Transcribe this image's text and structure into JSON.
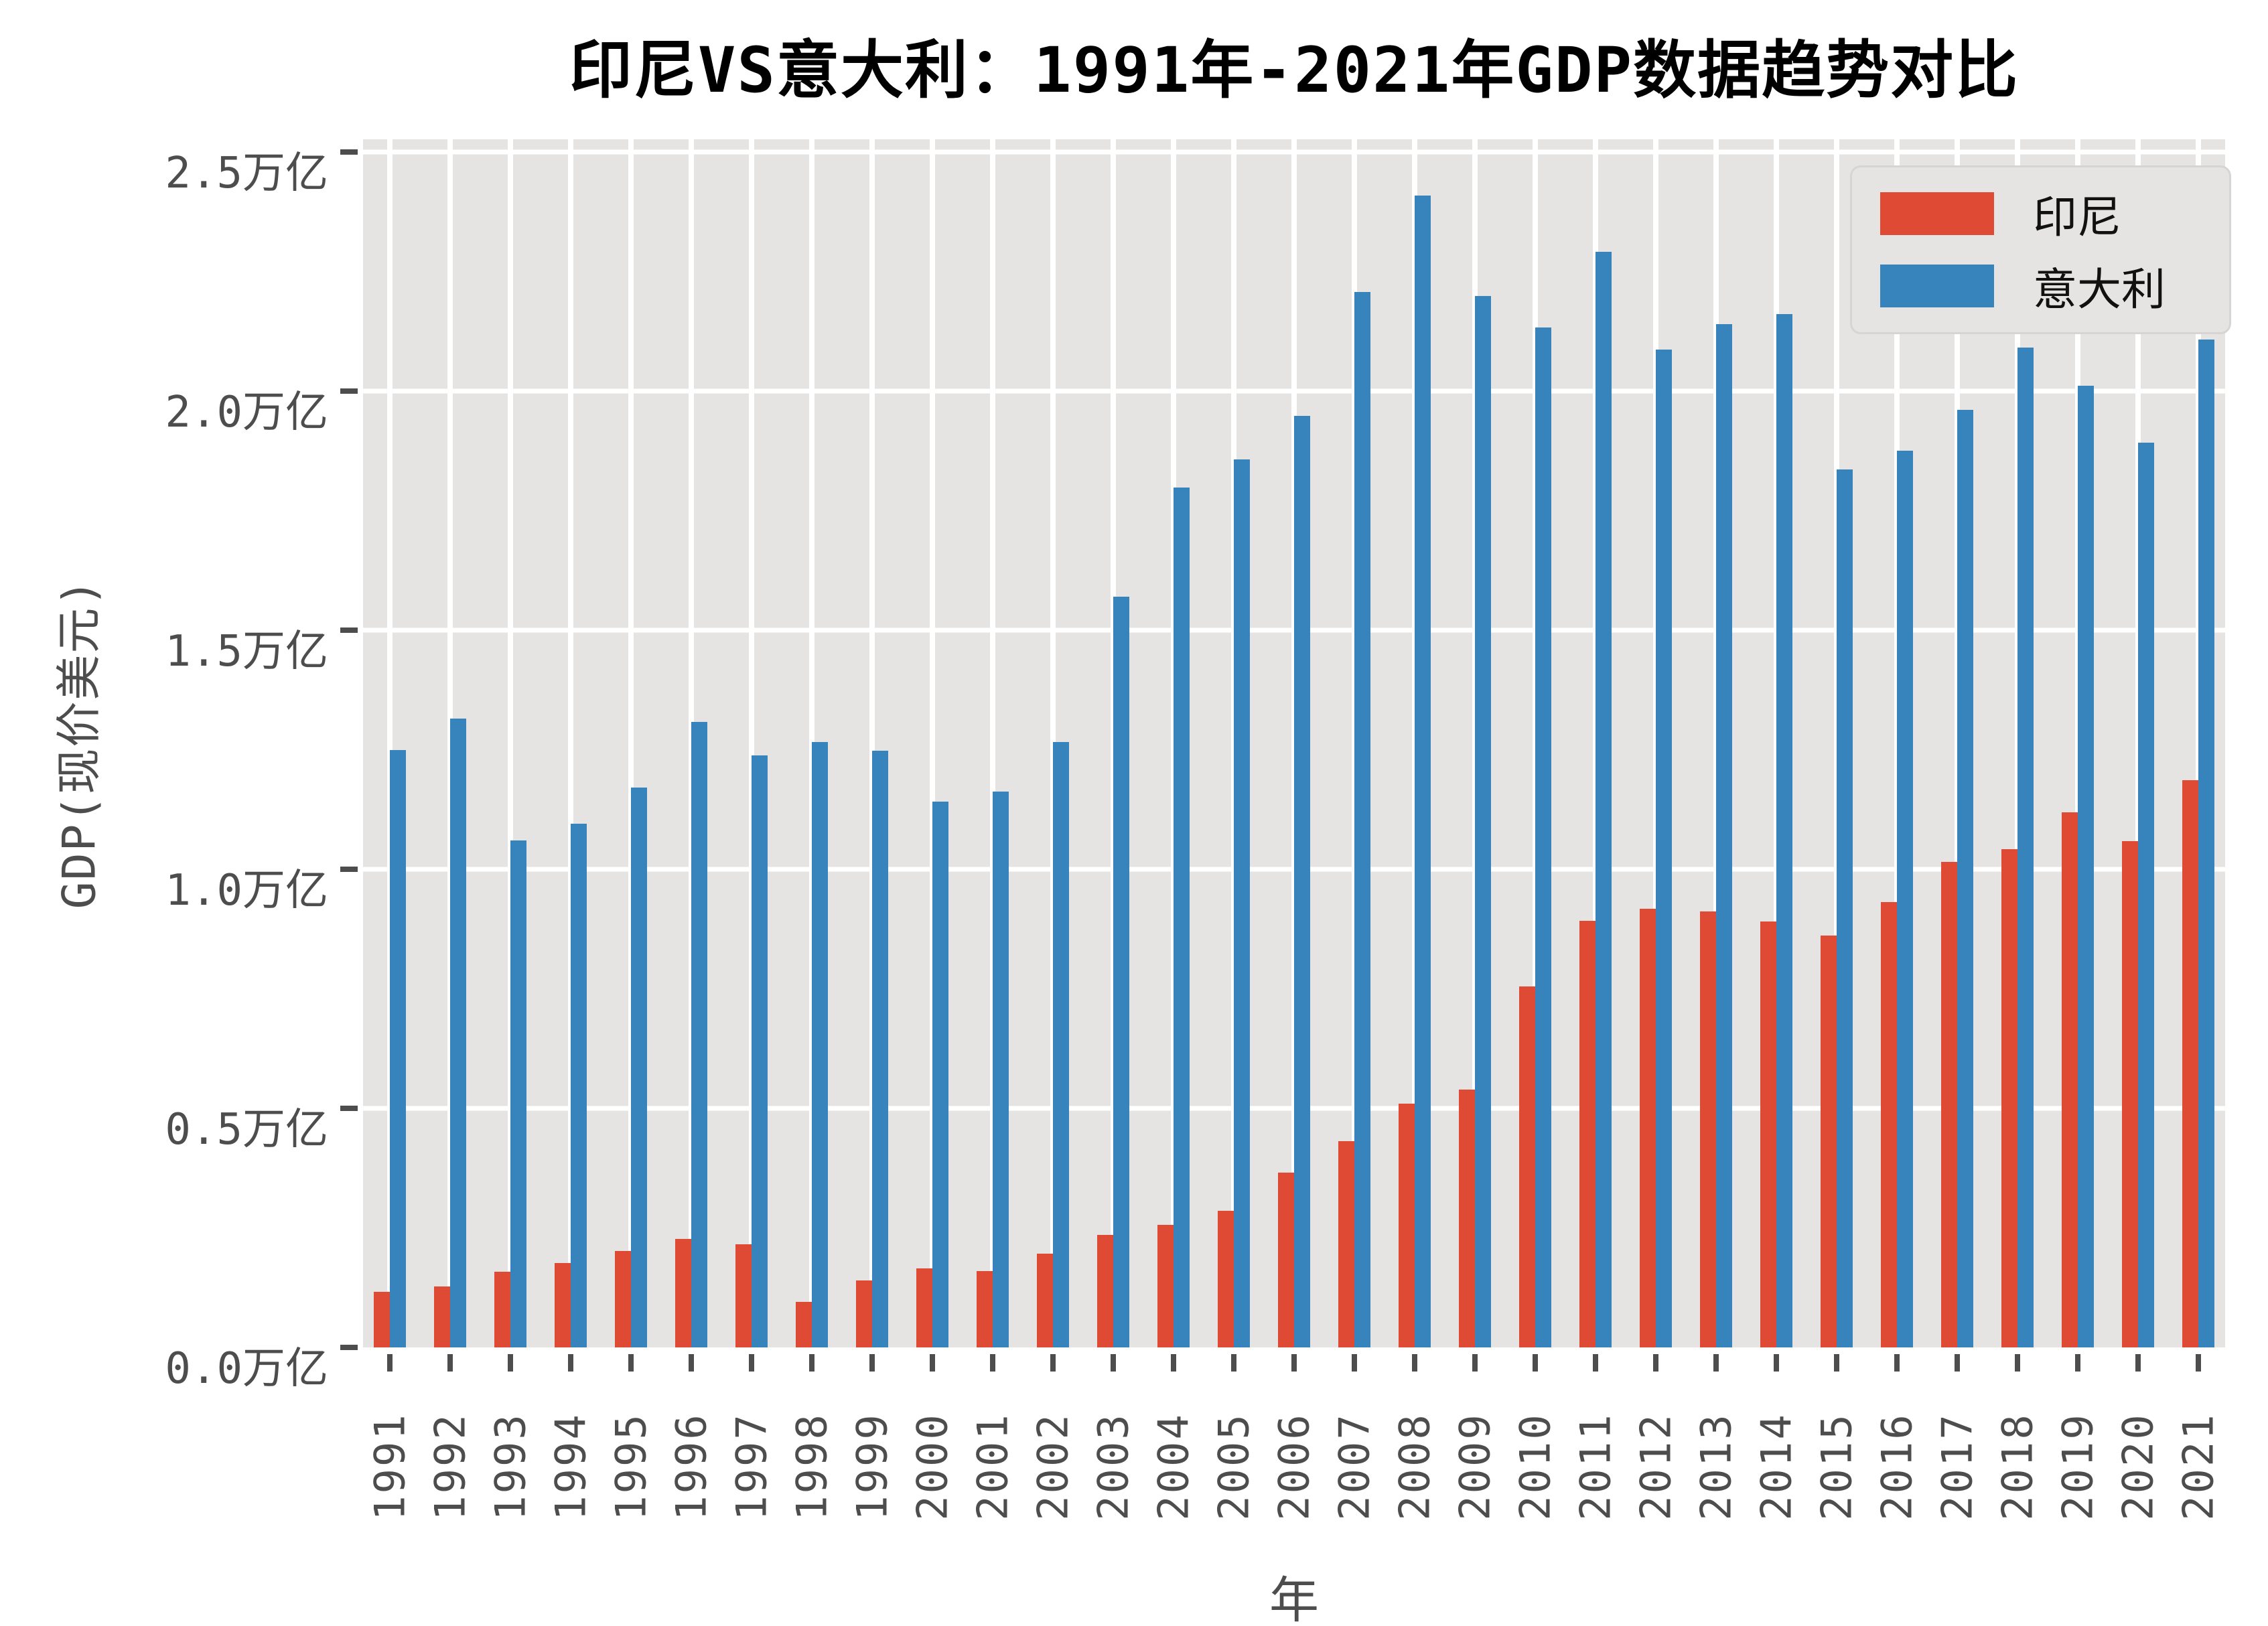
{
  "chart_data": {
    "type": "bar",
    "title": "印尼VS意大利：1991年-2021年GDP数据趋势对比",
    "xlabel": "年",
    "ylabel": "GDP(现价美元)",
    "unit": "万亿 (trillion USD, current prices)",
    "categories": [
      "1991",
      "1992",
      "1993",
      "1994",
      "1995",
      "1996",
      "1997",
      "1998",
      "1999",
      "2000",
      "2001",
      "2002",
      "2003",
      "2004",
      "2005",
      "2006",
      "2007",
      "2008",
      "2009",
      "2010",
      "2011",
      "2012",
      "2013",
      "2014",
      "2015",
      "2016",
      "2017",
      "2018",
      "2019",
      "2020",
      "2021"
    ],
    "series": [
      {
        "name": "印尼",
        "slug": "indonesia",
        "color": "#DE4A33",
        "values": [
          0.116,
          0.128,
          0.158,
          0.177,
          0.202,
          0.227,
          0.216,
          0.095,
          0.14,
          0.165,
          0.16,
          0.196,
          0.235,
          0.257,
          0.286,
          0.365,
          0.432,
          0.51,
          0.54,
          0.755,
          0.893,
          0.918,
          0.912,
          0.891,
          0.861,
          0.932,
          1.015,
          1.042,
          1.119,
          1.059,
          1.186
        ]
      },
      {
        "name": "意大利",
        "slug": "italy",
        "color": "#3783BC",
        "values": [
          1.249,
          1.315,
          1.061,
          1.095,
          1.171,
          1.309,
          1.239,
          1.266,
          1.248,
          1.142,
          1.162,
          1.267,
          1.57,
          1.799,
          1.857,
          1.949,
          2.207,
          2.409,
          2.199,
          2.134,
          2.292,
          2.087,
          2.141,
          2.162,
          1.836,
          1.875,
          1.961,
          2.092,
          2.011,
          1.892,
          2.108
        ]
      }
    ],
    "y_ticks": [
      {
        "label": "0.0万亿",
        "value": 0.0
      },
      {
        "label": "0.5万亿",
        "value": 0.5
      },
      {
        "label": "1.0万亿",
        "value": 1.0
      },
      {
        "label": "1.5万亿",
        "value": 1.5
      },
      {
        "label": "2.0万亿",
        "value": 2.0
      },
      {
        "label": "2.5万亿",
        "value": 2.5
      }
    ],
    "ylim": [
      0,
      2.527
    ],
    "grid": true,
    "grid_color": "#FFFFFF",
    "plot_background": "#E5E4E2",
    "figure_background": "#FFFFFF",
    "tick_color": "#4D4D4D",
    "legend_position": "upper right"
  }
}
